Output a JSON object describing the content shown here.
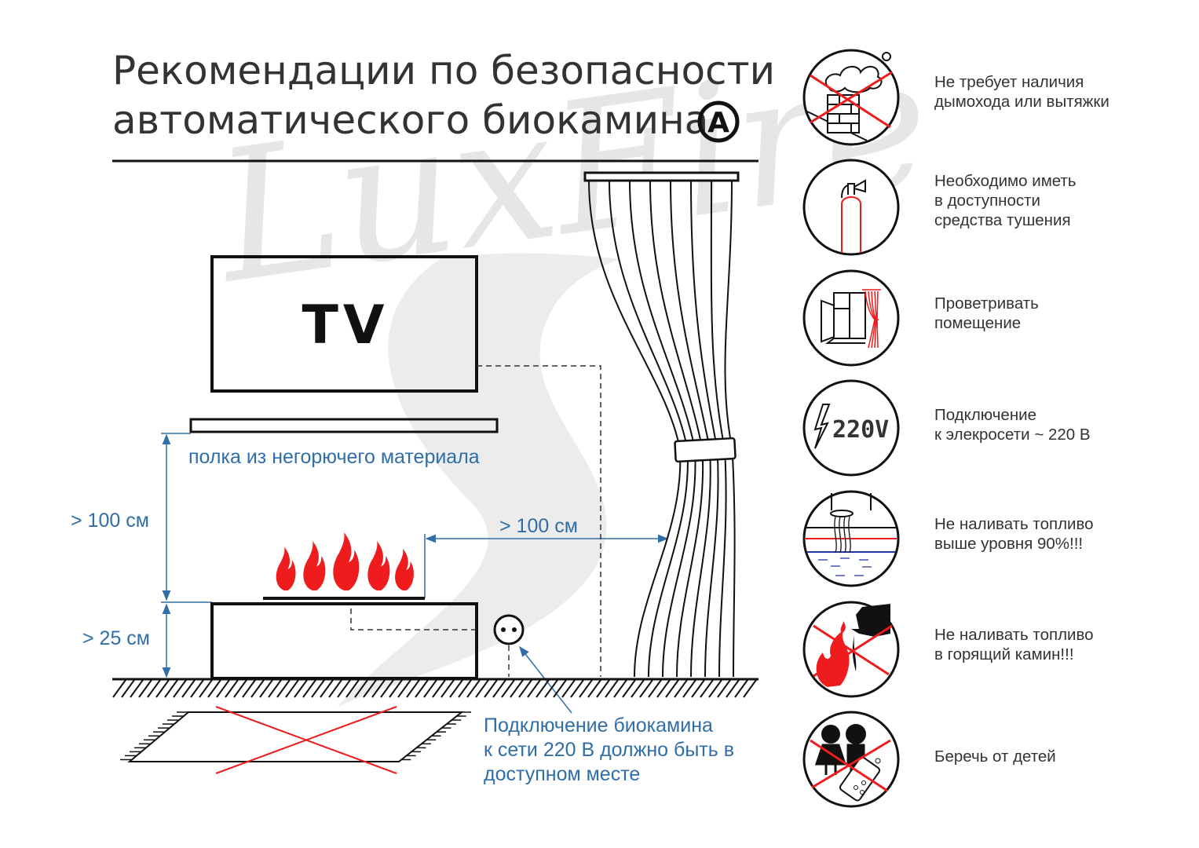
{
  "title": {
    "line1": "Рекомендации по безопасности",
    "line2": "автоматического биокамина",
    "badge": "A"
  },
  "watermark": "LuxFire",
  "diagram": {
    "tv_label": "TV",
    "shelf_label": "полка из негорючего материала",
    "height_above_fireplace": "> 100 см",
    "height_fireplace_base": "> 25 см",
    "distance_to_curtain": "> 100 см",
    "socket_note": [
      "Подключение биокамина",
      "к сети 220 В должно быть в",
      "доступном месте"
    ]
  },
  "recommendations": [
    {
      "icon": "no-chimney-icon",
      "lines": [
        "Не требует наличия",
        "дымохода или вытяжки"
      ]
    },
    {
      "icon": "fire-extinguisher-icon",
      "lines": [
        "Необходимо иметь",
        "в доступности",
        "средства тушения"
      ]
    },
    {
      "icon": "window-ventilation-icon",
      "lines": [
        "Проветривать",
        "помещение"
      ]
    },
    {
      "icon": "power-220v-icon",
      "icon_text": "220V",
      "lines": [
        "Подключение",
        "к элекросети ~ 220 В"
      ]
    },
    {
      "icon": "fuel-level-icon",
      "lines": [
        "Не наливать топливо",
        "выше уровня 90%!!!"
      ]
    },
    {
      "icon": "no-refuel-burning-icon",
      "lines": [
        "Не наливать топливо",
        "в горящий камин!!!"
      ]
    },
    {
      "icon": "keep-from-children-icon",
      "lines": [
        "Беречь от детей"
      ]
    }
  ],
  "colors": {
    "accent_red": "#ee1c1c",
    "dimension_blue": "#2f6ea8",
    "ink": "#111111",
    "text": "#333333",
    "watermark": "#e6e6e6"
  }
}
